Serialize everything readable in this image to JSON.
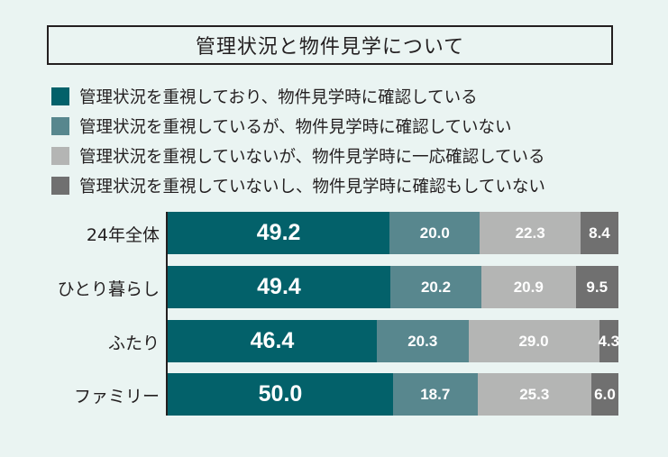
{
  "chart_data": {
    "type": "bar",
    "orientation": "horizontal",
    "stacked": true,
    "title": "管理状況と物件見学について",
    "categories": [
      "24年全体",
      "ひとり暮らし",
      "ふたり",
      "ファミリー"
    ],
    "series": [
      {
        "name": "管理状況を重視しており、物件見学時に確認している",
        "color": "#03616a",
        "values": [
          49.2,
          49.4,
          46.4,
          50.0
        ]
      },
      {
        "name": "管理状況を重視しているが、物件見学時に確認していない",
        "color": "#58878e",
        "values": [
          20.0,
          20.2,
          20.3,
          18.7
        ]
      },
      {
        "name": "管理状況を重視していないが、物件見学時に一応確認している",
        "color": "#b4b5b4",
        "values": [
          22.3,
          20.9,
          29.0,
          25.3
        ]
      },
      {
        "name": "管理状況を重視していないし、物件見学時に確認もしていない",
        "color": "#707070",
        "values": [
          8.4,
          9.5,
          4.3,
          6.0
        ]
      }
    ],
    "xlim": [
      0,
      100
    ],
    "legend": "top"
  }
}
